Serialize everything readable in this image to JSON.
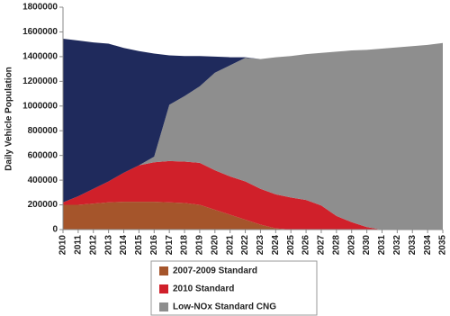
{
  "chart_data": {
    "type": "stacked_area",
    "y_label": "Daily Vehicle Population",
    "categories": [
      "2010",
      "2011",
      "2012",
      "2013",
      "2014",
      "2015",
      "2016",
      "2017",
      "2018",
      "2019",
      "2020",
      "2021",
      "2022",
      "2023",
      "2024",
      "2025",
      "2026",
      "2027",
      "2028",
      "2029",
      "2030",
      "2031",
      "2032",
      "2033",
      "2034",
      "2035"
    ],
    "series": [
      {
        "name": "2007-2009 Standard",
        "color": "#a5552b",
        "values": [
          200000,
          200000,
          210000,
          220000,
          225000,
          225000,
          225000,
          220000,
          215000,
          200000,
          160000,
          120000,
          80000,
          40000,
          10000,
          0,
          0,
          0,
          0,
          0,
          0,
          0,
          0,
          0,
          0,
          0
        ]
      },
      {
        "name": "2010 Standard",
        "color": "#d0202a",
        "values": [
          20000,
          70000,
          120000,
          170000,
          235000,
          295000,
          320000,
          335000,
          335000,
          340000,
          320000,
          310000,
          310000,
          290000,
          275000,
          260000,
          240000,
          195000,
          110000,
          60000,
          20000,
          0,
          0,
          0,
          0,
          0
        ]
      },
      {
        "name": "Low-NOx Standard CNG",
        "color": "#8e8e8e",
        "values": [
          0,
          0,
          0,
          0,
          0,
          0,
          45000,
          455000,
          530000,
          620000,
          790000,
          900000,
          1000000,
          1050000,
          1110000,
          1145000,
          1180000,
          1235000,
          1330000,
          1390000,
          1435000,
          1465000,
          1475000,
          1485000,
          1495000,
          1510000
        ]
      },
      {
        "name": null,
        "color": "#1f2a5c",
        "values": [
          1325000,
          1260000,
          1185000,
          1115000,
          1010000,
          925000,
          835000,
          400000,
          325000,
          245000,
          130000,
          65000,
          5000,
          0,
          0,
          0,
          0,
          0,
          0,
          0,
          0,
          0,
          0,
          0,
          0,
          0
        ]
      }
    ],
    "ylim": [
      0,
      1800000
    ],
    "yticks": [
      0,
      200000,
      400000,
      600000,
      800000,
      1000000,
      1200000,
      1400000,
      1600000,
      1800000
    ],
    "grid": false
  }
}
